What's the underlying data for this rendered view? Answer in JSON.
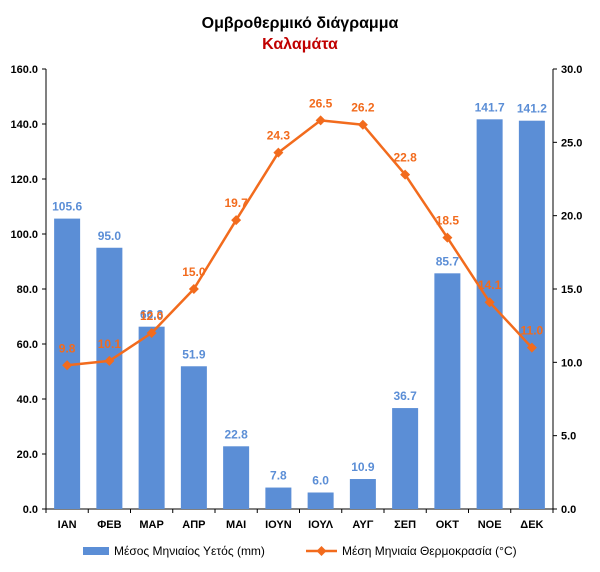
{
  "chart_data": {
    "type": "bar",
    "title": "Ομβροθερμικό διάγραμμα",
    "subtitle": "Καλαμάτα",
    "categories": [
      "ΙΑΝ",
      "ΦΕΒ",
      "ΜΑΡ",
      "ΑΠΡ",
      "ΜΑΙ",
      "ΙΟΥΝ",
      "ΙΟΥΛ",
      "ΑΥΓ",
      "ΣΕΠ",
      "ΟΚΤ",
      "ΝΟΕ",
      "ΔΕΚ"
    ],
    "series": [
      {
        "name": "Μέσος Μηνιαίος Υετός (mm)",
        "type": "bar",
        "axis": "left",
        "color": "#5B8ED6",
        "values": [
          105.6,
          95.0,
          66.3,
          51.9,
          22.8,
          7.8,
          6.0,
          10.9,
          36.7,
          85.7,
          141.7,
          141.2
        ],
        "labels": [
          "105.6",
          "95.0",
          "66.3",
          "51.9",
          "22.8",
          "7.8",
          "6.0",
          "10.9",
          "36.7",
          "85.7",
          "141.7",
          "141.2"
        ]
      },
      {
        "name": "Μέση Μηνιαία Θερμοκρασία (°C)",
        "type": "line",
        "axis": "right",
        "color": "#F26B1D",
        "values": [
          9.8,
          10.1,
          12.0,
          15.0,
          19.7,
          24.3,
          26.5,
          26.2,
          22.8,
          18.5,
          14.1,
          11.0
        ],
        "labels": [
          "9.8",
          "10.1",
          "12.0",
          "15.0",
          "19.7",
          "24.3",
          "26.5",
          "26.2",
          "22.8",
          "18.5",
          "14.1",
          "11.0"
        ]
      }
    ],
    "y_left": {
      "ylim": [
        0,
        160
      ],
      "ticks": [
        "0.0",
        "20.0",
        "40.0",
        "60.0",
        "80.0",
        "100.0",
        "120.0",
        "140.0",
        "160.0"
      ]
    },
    "y_right": {
      "ylim": [
        0,
        30
      ],
      "ticks": [
        "0.0",
        "5.0",
        "10.0",
        "15.0",
        "20.0",
        "25.0",
        "30.0"
      ]
    },
    "grid": false,
    "legend_position": "bottom",
    "colors": {
      "subtitle": "#C00000",
      "bar_label": "#5B8ED6",
      "line_label": "#F26B1D",
      "axis": "#000000"
    }
  }
}
